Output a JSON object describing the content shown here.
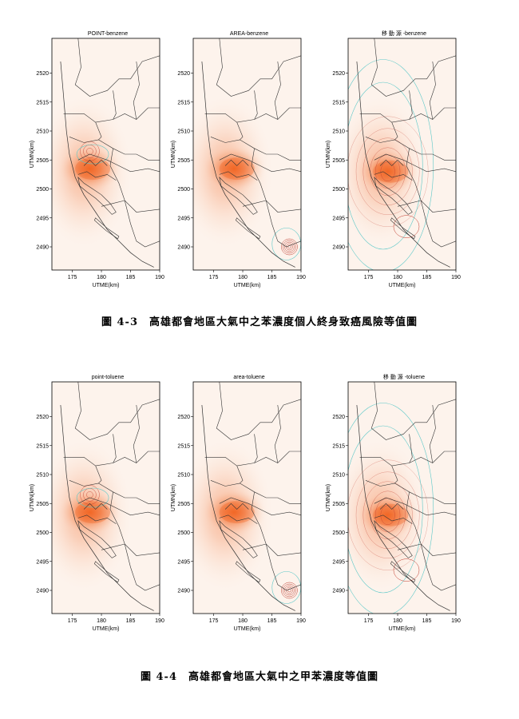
{
  "figures": [
    {
      "caption_number": "圖 4-3",
      "caption_text": "高雄都會地區大氣中之苯濃度個人終身致癌風險等值圖",
      "panels": [
        {
          "title": "POINT-benzene",
          "hotspot": "city-point",
          "variant": "point"
        },
        {
          "title": "AREA-benzene",
          "hotspot": "city-area",
          "variant": "area"
        },
        {
          "title": "移 動 源 -benzene",
          "hotspot": "city-mobile",
          "variant": "mobile"
        }
      ]
    },
    {
      "caption_number": "圖 4-4",
      "caption_text": "高雄都會地區大氣中之甲苯濃度等值圖",
      "panels": [
        {
          "title": "point-toluene",
          "hotspot": "city-point",
          "variant": "point"
        },
        {
          "title": "area-toluene",
          "hotspot": "city-area",
          "variant": "area"
        },
        {
          "title": "移 動 源 -toluene",
          "hotspot": "city-mobile",
          "variant": "mobile"
        }
      ]
    }
  ],
  "axes": {
    "xlabel": "UTME(km)",
    "ylabel": "UTMN(km)",
    "xticks": [
      175,
      180,
      185,
      190
    ],
    "yticks": [
      2490,
      2495,
      2500,
      2505,
      2510,
      2515,
      2520
    ],
    "xlim": [
      171.5,
      190
    ],
    "ylim": [
      2486,
      2526
    ]
  },
  "colors": {
    "hotspot": "#f26522",
    "contour_red": "#c0392b",
    "contour_cyan": "#5cc8c8",
    "boundary": "#333333"
  }
}
